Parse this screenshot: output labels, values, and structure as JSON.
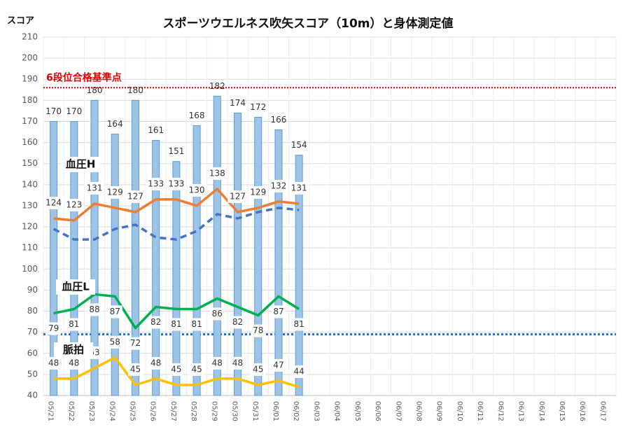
{
  "chart_data": {
    "type": "bar_line",
    "title": "スポーツウエルネス吹矢スコア（10m）と身体測定値",
    "y_axis_label": "スコア",
    "categories": [
      "05/21",
      "05/22",
      "05/23",
      "05/24",
      "05/25",
      "05/26",
      "05/27",
      "05/28",
      "05/29",
      "05/30",
      "05/31",
      "06/01",
      "06/02",
      "06/03",
      "06/04",
      "06/05",
      "06/06",
      "06/07",
      "06/08",
      "06/09",
      "06/10",
      "06/11",
      "06/12",
      "06/13",
      "06/14",
      "06/15",
      "06/16",
      "06/17"
    ],
    "bar": {
      "color": "#9dc3e6",
      "values": [
        170,
        170,
        180,
        164,
        180,
        161,
        151,
        168,
        182,
        174,
        172,
        166,
        154,
        null,
        null,
        null,
        null,
        null,
        null,
        null,
        null,
        null,
        null,
        null,
        null,
        null,
        null,
        null
      ]
    },
    "series": [
      {
        "name": "血圧H",
        "color": "#ed7d31",
        "values": [
          124,
          123,
          131,
          129,
          127,
          133,
          133,
          130,
          138,
          127,
          129,
          132,
          131,
          null,
          null,
          null,
          null,
          null,
          null,
          null,
          null,
          null,
          null,
          null,
          null,
          null,
          null,
          null
        ]
      },
      {
        "color": "#4472c4",
        "dashed": true,
        "values": [
          119,
          114,
          114,
          119,
          121,
          115,
          114,
          118,
          126,
          124,
          127,
          129,
          128,
          null,
          null,
          null,
          null,
          null,
          null,
          null,
          null,
          null,
          null,
          null,
          null,
          null,
          null,
          null
        ]
      },
      {
        "name": "血圧L",
        "color": "#00b050",
        "values": [
          79,
          81,
          88,
          87,
          72,
          82,
          81,
          81,
          86,
          82,
          78,
          87,
          81,
          null,
          null,
          null,
          null,
          null,
          null,
          null,
          null,
          null,
          null,
          null,
          null,
          null,
          null,
          null
        ]
      },
      {
        "name": "脈拍",
        "color": "#ffc000",
        "values": [
          48,
          48,
          53,
          58,
          45,
          48,
          45,
          45,
          48,
          48,
          45,
          47,
          44,
          null,
          null,
          null,
          null,
          null,
          null,
          null,
          null,
          null,
          null,
          null,
          null,
          null,
          null,
          null
        ]
      }
    ],
    "reference_lines": [
      {
        "value": 186,
        "label": "6段位合格基準点",
        "color": "#e00000"
      },
      {
        "value": 69,
        "color": "#1f6fbf"
      }
    ],
    "ylim": [
      40,
      210
    ],
    "yticks": [
      40,
      50,
      60,
      70,
      80,
      90,
      100,
      110,
      120,
      130,
      140,
      150,
      160,
      170,
      180,
      190,
      200,
      210
    ],
    "grid": true
  }
}
